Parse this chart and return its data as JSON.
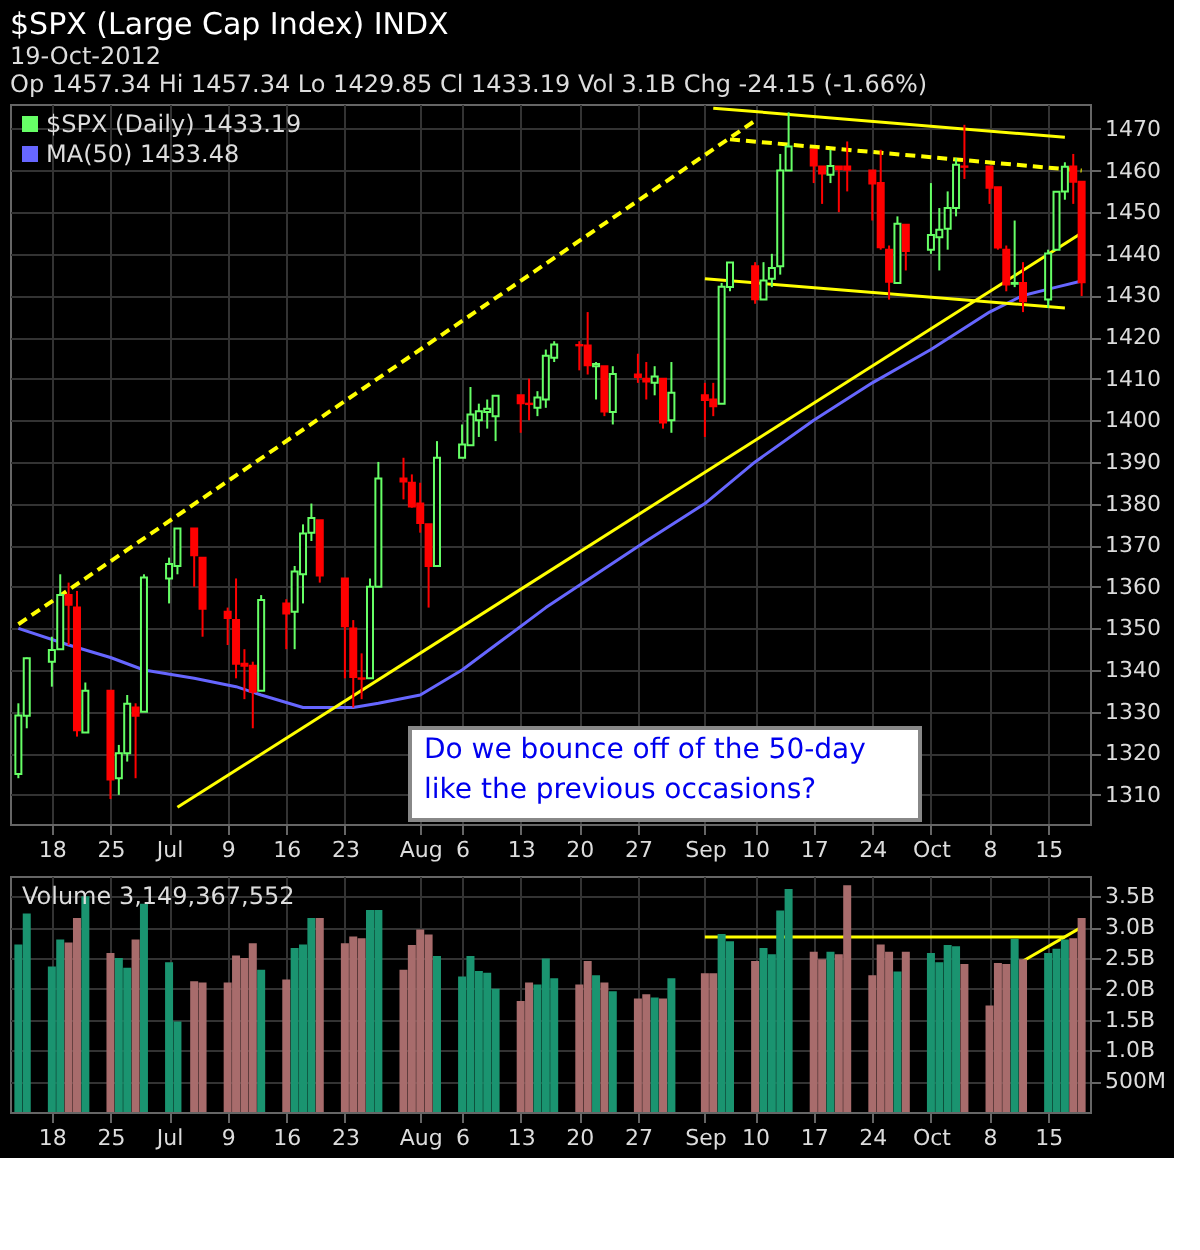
{
  "chart_data": [
    {
      "type": "candlestick",
      "title": "$SPX (Large Cap Index) INDX",
      "subtitle": "19-Oct-2012",
      "annotations": [
        "Op 1457.34  Hi 1457.34  Lo 1429.85  Cl 1433.19  Vol 3.1B  Chg -24.15 (-1.66%)",
        "Do we bounce off of the 50-day like the previous occasions?"
      ],
      "x": [
        "2012-06-14",
        "2012-06-15",
        "2012-06-18",
        "2012-06-19",
        "2012-06-20",
        "2012-06-21",
        "2012-06-22",
        "2012-06-25",
        "2012-06-26",
        "2012-06-27",
        "2012-06-28",
        "2012-06-29",
        "2012-07-02",
        "2012-07-03",
        "2012-07-05",
        "2012-07-06",
        "2012-07-09",
        "2012-07-10",
        "2012-07-11",
        "2012-07-12",
        "2012-07-13",
        "2012-07-16",
        "2012-07-17",
        "2012-07-18",
        "2012-07-19",
        "2012-07-20",
        "2012-07-23",
        "2012-07-24",
        "2012-07-25",
        "2012-07-26",
        "2012-07-27",
        "2012-07-30",
        "2012-07-31",
        "2012-08-01",
        "2012-08-02",
        "2012-08-03",
        "2012-08-06",
        "2012-08-07",
        "2012-08-08",
        "2012-08-09",
        "2012-08-10",
        "2012-08-13",
        "2012-08-14",
        "2012-08-15",
        "2012-08-16",
        "2012-08-17",
        "2012-08-20",
        "2012-08-21",
        "2012-08-22",
        "2012-08-23",
        "2012-08-24",
        "2012-08-27",
        "2012-08-28",
        "2012-08-29",
        "2012-08-30",
        "2012-08-31",
        "2012-09-04",
        "2012-09-05",
        "2012-09-06",
        "2012-09-07",
        "2012-09-10",
        "2012-09-11",
        "2012-09-12",
        "2012-09-13",
        "2012-09-14",
        "2012-09-17",
        "2012-09-18",
        "2012-09-19",
        "2012-09-20",
        "2012-09-21",
        "2012-09-24",
        "2012-09-25",
        "2012-09-26",
        "2012-09-27",
        "2012-09-28",
        "2012-10-01",
        "2012-10-02",
        "2012-10-03",
        "2012-10-04",
        "2012-10-05",
        "2012-10-08",
        "2012-10-09",
        "2012-10-10",
        "2012-10-11",
        "2012-10-12",
        "2012-10-15",
        "2012-10-16",
        "2012-10-17",
        "2012-10-18",
        "2012-10-19"
      ],
      "xticks": [
        {
          "value": "2012-06-18",
          "label": "18"
        },
        {
          "value": "2012-06-25",
          "label": "25"
        },
        {
          "value": "2012-07-02",
          "label": "Jul"
        },
        {
          "value": "2012-07-09",
          "label": "9"
        },
        {
          "value": "2012-07-16",
          "label": "16"
        },
        {
          "value": "2012-07-23",
          "label": "23"
        },
        {
          "value": "2012-08-01",
          "label": "Aug"
        },
        {
          "value": "2012-08-06",
          "label": "6"
        },
        {
          "value": "2012-08-13",
          "label": "13"
        },
        {
          "value": "2012-08-20",
          "label": "20"
        },
        {
          "value": "2012-08-27",
          "label": "27"
        },
        {
          "value": "2012-09-04",
          "label": "Sep"
        },
        {
          "value": "2012-09-10",
          "label": "10"
        },
        {
          "value": "2012-09-17",
          "label": "17"
        },
        {
          "value": "2012-09-24",
          "label": "24"
        },
        {
          "value": "2012-10-01",
          "label": "Oct"
        },
        {
          "value": "2012-10-08",
          "label": "8"
        },
        {
          "value": "2012-10-15",
          "label": "15"
        }
      ],
      "xlim": [
        "2012-06-13",
        "2012-10-20"
      ],
      "ylim": [
        1303,
        1476
      ],
      "yticks": [
        1310,
        1320,
        1330,
        1340,
        1350,
        1360,
        1370,
        1380,
        1390,
        1400,
        1410,
        1420,
        1430,
        1440,
        1450,
        1460,
        1470
      ],
      "grid": true,
      "legend": "top left",
      "series": [
        {
          "name": "$SPX (Daily) 1433.19",
          "type": "candlestick",
          "ohlc": [
            [
              1315,
              1332,
              1314,
              1329.1
            ],
            [
              1329,
              1343,
              1326,
              1342.8
            ],
            [
              1342,
              1348,
              1336,
              1344.8
            ],
            [
              1345,
              1363,
              1345,
              1358
            ],
            [
              1358,
              1361,
              1346,
              1355.7
            ],
            [
              1355,
              1359,
              1324,
              1325.5
            ],
            [
              1325,
              1337,
              1325,
              1335
            ],
            [
              1335,
              1335,
              1309,
              1313.7
            ],
            [
              1314,
              1322,
              1310,
              1320
            ],
            [
              1320,
              1334,
              1318,
              1331.9
            ],
            [
              1331,
              1332,
              1314,
              1329
            ],
            [
              1330,
              1363,
              1330,
              1362.2
            ],
            [
              1362,
              1367,
              1356,
              1365.5
            ],
            [
              1365,
              1374,
              1363,
              1374
            ],
            [
              1374,
              1374,
              1360,
              1367.6
            ],
            [
              1367,
              1367,
              1348,
              1354.7
            ],
            [
              1354,
              1355,
              1346,
              1352.5
            ],
            [
              1352,
              1362,
              1338,
              1341.5
            ],
            [
              1341,
              1345,
              1333,
              1341.5
            ],
            [
              1341,
              1342,
              1326,
              1334.8
            ],
            [
              1335,
              1358,
              1335,
              1356.8
            ],
            [
              1356,
              1357,
              1345,
              1353.6
            ],
            [
              1354,
              1365,
              1345,
              1363.7
            ],
            [
              1363,
              1375,
              1356,
              1372.8
            ],
            [
              1373,
              1380,
              1371,
              1376.5
            ],
            [
              1376,
              1376,
              1361,
              1362.7
            ],
            [
              1362,
              1362,
              1338,
              1350.5
            ],
            [
              1350,
              1352,
              1331,
              1338.3
            ],
            [
              1338,
              1344,
              1333,
              1337.9
            ],
            [
              1338,
              1362,
              1338,
              1360
            ],
            [
              1360,
              1390,
              1360,
              1386
            ],
            [
              1386,
              1391,
              1381,
              1385.3
            ],
            [
              1385,
              1387,
              1379,
              1379.3
            ],
            [
              1380,
              1385,
              1373,
              1375.3
            ],
            [
              1375,
              1375,
              1355,
              1365
            ],
            [
              1365,
              1395,
              1365,
              1391
            ],
            [
              1391,
              1399,
              1391,
              1394.2
            ],
            [
              1394,
              1408,
              1394,
              1401.4
            ],
            [
              1400,
              1404,
              1396,
              1402.2
            ],
            [
              1402,
              1405,
              1398,
              1402.8
            ],
            [
              1401,
              1406,
              1395,
              1405.9
            ],
            [
              1406,
              1406,
              1397,
              1404.1
            ],
            [
              1404,
              1410,
              1400,
              1403.9
            ],
            [
              1403,
              1407,
              1401,
              1405.5
            ],
            [
              1405,
              1417,
              1403,
              1415.5
            ],
            [
              1415,
              1419,
              1414,
              1418.2
            ],
            [
              1418,
              1419,
              1412,
              1418.1
            ],
            [
              1418,
              1426,
              1411,
              1413.2
            ],
            [
              1413,
              1414,
              1405,
              1413.5
            ],
            [
              1413,
              1413,
              1401,
              1402.1
            ],
            [
              1402,
              1413,
              1399,
              1411.1
            ],
            [
              1411,
              1416,
              1409,
              1410.4
            ],
            [
              1410,
              1414,
              1405,
              1409.3
            ],
            [
              1409,
              1413,
              1406,
              1410.5
            ],
            [
              1410,
              1410,
              1398,
              1399.5
            ],
            [
              1400,
              1414,
              1397,
              1406.6
            ],
            [
              1406,
              1409,
              1396,
              1404.9
            ],
            [
              1405,
              1409,
              1401,
              1403.4
            ],
            [
              1404,
              1433,
              1404,
              1432.1
            ],
            [
              1432,
              1438,
              1431,
              1437.9
            ],
            [
              1437,
              1438,
              1428,
              1429.1
            ],
            [
              1429,
              1438,
              1429,
              1433.6
            ],
            [
              1434,
              1440,
              1432,
              1436.6
            ],
            [
              1437,
              1464,
              1435,
              1460
            ],
            [
              1460,
              1474,
              1460,
              1465.8
            ],
            [
              1465,
              1465,
              1457,
              1461.2
            ],
            [
              1461,
              1461,
              1452,
              1459.3
            ],
            [
              1459,
              1465,
              1457,
              1461.1
            ],
            [
              1461,
              1461,
              1450,
              1460.3
            ],
            [
              1461,
              1467,
              1455,
              1460.2
            ],
            [
              1460,
              1460,
              1448,
              1456.9
            ],
            [
              1457,
              1465,
              1441,
              1441.6
            ],
            [
              1441,
              1442,
              1429,
              1433.3
            ],
            [
              1433,
              1449,
              1433,
              1447.2
            ],
            [
              1447,
              1447,
              1436,
              1440.7
            ],
            [
              1441,
              1457,
              1440,
              1444.5
            ],
            [
              1444,
              1451,
              1436,
              1445.8
            ],
            [
              1446,
              1455,
              1441,
              1451
            ],
            [
              1451,
              1463,
              1449,
              1461.4
            ],
            [
              1461,
              1471,
              1458,
              1460.9
            ],
            [
              1461,
              1461,
              1452,
              1455.9
            ],
            [
              1456,
              1456,
              1441,
              1441.5
            ],
            [
              1441,
              1442,
              1431,
              1432.6
            ],
            [
              1433,
              1448,
              1432,
              1432.8
            ],
            [
              1433,
              1438,
              1426,
              1428.6
            ],
            [
              1429,
              1441,
              1427,
              1440.1
            ],
            [
              1441,
              1455,
              1441,
              1454.9
            ],
            [
              1455,
              1462,
              1453,
              1460.9
            ],
            [
              1461,
              1464,
              1452,
              1457.3
            ],
            [
              1457.34,
              1457.34,
              1429.85,
              1433.19
            ]
          ],
          "colors": [
            "#66ff66",
            "#66ff66",
            "#66ff66",
            "#66ff66",
            "#ff0000",
            "#ff0000",
            "#66ff66",
            "#ff0000",
            "#66ff66",
            "#66ff66",
            "#ff0000",
            "#66ff66",
            "#66ff66",
            "#66ff66",
            "#ff0000",
            "#ff0000",
            "#ff0000",
            "#ff0000",
            "#ff0000",
            "#ff0000",
            "#66ff66",
            "#ff0000",
            "#66ff66",
            "#66ff66",
            "#66ff66",
            "#ff0000",
            "#ff0000",
            "#ff0000",
            "#ff0000",
            "#66ff66",
            "#66ff66",
            "#ff0000",
            "#ff0000",
            "#ff0000",
            "#ff0000",
            "#66ff66",
            "#66ff66",
            "#66ff66",
            "#66ff66",
            "#66ff66",
            "#66ff66",
            "#ff0000",
            "#ff0000",
            "#66ff66",
            "#66ff66",
            "#66ff66",
            "#ff0000",
            "#ff0000",
            "#66ff66",
            "#ff0000",
            "#66ff66",
            "#ff0000",
            "#ff0000",
            "#66ff66",
            "#ff0000",
            "#66ff66",
            "#ff0000",
            "#ff0000",
            "#66ff66",
            "#66ff66",
            "#ff0000",
            "#66ff66",
            "#66ff66",
            "#66ff66",
            "#66ff66",
            "#ff0000",
            "#ff0000",
            "#66ff66",
            "#ff0000",
            "#ff0000",
            "#ff0000",
            "#ff0000",
            "#ff0000",
            "#66ff66",
            "#ff0000",
            "#66ff66",
            "#66ff66",
            "#66ff66",
            "#66ff66",
            "#ff0000",
            "#ff0000",
            "#ff0000",
            "#ff0000",
            "#66ff66",
            "#ff0000",
            "#66ff66",
            "#66ff66",
            "#66ff66",
            "#ff0000",
            "#ff0000"
          ]
        },
        {
          "name": "MA(50) 1433.48",
          "type": "line",
          "color": "#6666ff",
          "x": [
            "2012-06-14",
            "2012-06-20",
            "2012-06-25",
            "2012-06-29",
            "2012-07-05",
            "2012-07-10",
            "2012-07-13",
            "2012-07-18",
            "2012-07-24",
            "2012-07-27",
            "2012-08-01",
            "2012-08-06",
            "2012-08-10",
            "2012-08-16",
            "2012-08-22",
            "2012-08-28",
            "2012-09-04",
            "2012-09-10",
            "2012-09-17",
            "2012-09-24",
            "2012-10-01",
            "2012-10-08",
            "2012-10-12",
            "2012-10-16",
            "2012-10-19"
          ],
          "values": [
            1350,
            1346,
            1343,
            1340,
            1338,
            1336,
            1334,
            1331,
            1331,
            1332,
            1334,
            1340,
            1346,
            1355,
            1363,
            1371,
            1380,
            1390,
            1400,
            1409,
            1417,
            1426,
            1430,
            1432,
            1433.48
          ]
        },
        {
          "type": "line",
          "color": "#ffff00",
          "line_style": "solid",
          "x": [
            "2012-07-03",
            "2012-10-19"
          ],
          "values": [
            1307,
            1445
          ]
        },
        {
          "type": "line",
          "color": "#ffff00",
          "line_style": "dashed",
          "x": [
            "2012-06-14",
            "2012-09-10"
          ],
          "values": [
            1351,
            1472
          ]
        },
        {
          "type": "line",
          "color": "#ffff00",
          "line_style": "solid",
          "x": [
            "2012-09-05",
            "2012-10-17"
          ],
          "values": [
            1475,
            1468
          ]
        },
        {
          "type": "line",
          "color": "#ffff00",
          "line_style": "dashed",
          "x": [
            "2012-09-07",
            "2012-10-19"
          ],
          "values": [
            1467.5,
            1460
          ]
        },
        {
          "type": "line",
          "color": "#ffff00",
          "line_style": "solid",
          "x": [
            "2012-09-04",
            "2012-10-17"
          ],
          "values": [
            1434,
            1427
          ]
        }
      ]
    },
    {
      "type": "bar",
      "title": "Volume 3,149,367,552",
      "x": [
        "2012-06-14",
        "2012-06-15",
        "2012-06-18",
        "2012-06-19",
        "2012-06-20",
        "2012-06-21",
        "2012-06-22",
        "2012-06-25",
        "2012-06-26",
        "2012-06-27",
        "2012-06-28",
        "2012-06-29",
        "2012-07-02",
        "2012-07-03",
        "2012-07-05",
        "2012-07-06",
        "2012-07-09",
        "2012-07-10",
        "2012-07-11",
        "2012-07-12",
        "2012-07-13",
        "2012-07-16",
        "2012-07-17",
        "2012-07-18",
        "2012-07-19",
        "2012-07-20",
        "2012-07-23",
        "2012-07-24",
        "2012-07-25",
        "2012-07-26",
        "2012-07-27",
        "2012-07-30",
        "2012-07-31",
        "2012-08-01",
        "2012-08-02",
        "2012-08-03",
        "2012-08-06",
        "2012-08-07",
        "2012-08-08",
        "2012-08-09",
        "2012-08-10",
        "2012-08-13",
        "2012-08-14",
        "2012-08-15",
        "2012-08-16",
        "2012-08-17",
        "2012-08-20",
        "2012-08-21",
        "2012-08-22",
        "2012-08-23",
        "2012-08-24",
        "2012-08-27",
        "2012-08-28",
        "2012-08-29",
        "2012-08-30",
        "2012-08-31",
        "2012-09-04",
        "2012-09-05",
        "2012-09-06",
        "2012-09-07",
        "2012-09-10",
        "2012-09-11",
        "2012-09-12",
        "2012-09-13",
        "2012-09-14",
        "2012-09-17",
        "2012-09-18",
        "2012-09-19",
        "2012-09-20",
        "2012-09-21",
        "2012-09-24",
        "2012-09-25",
        "2012-09-26",
        "2012-09-27",
        "2012-09-28",
        "2012-10-01",
        "2012-10-02",
        "2012-10-03",
        "2012-10-04",
        "2012-10-05",
        "2012-10-08",
        "2012-10-09",
        "2012-10-10",
        "2012-10-11",
        "2012-10-12",
        "2012-10-15",
        "2012-10-16",
        "2012-10-17",
        "2012-10-18",
        "2012-10-19"
      ],
      "xticks": [
        {
          "value": "2012-06-18",
          "label": "18"
        },
        {
          "value": "2012-06-25",
          "label": "25"
        },
        {
          "value": "2012-07-02",
          "label": "Jul"
        },
        {
          "value": "2012-07-09",
          "label": "9"
        },
        {
          "value": "2012-07-16",
          "label": "16"
        },
        {
          "value": "2012-07-23",
          "label": "23"
        },
        {
          "value": "2012-08-01",
          "label": "Aug"
        },
        {
          "value": "2012-08-06",
          "label": "6"
        },
        {
          "value": "2012-08-13",
          "label": "13"
        },
        {
          "value": "2012-08-20",
          "label": "20"
        },
        {
          "value": "2012-08-27",
          "label": "27"
        },
        {
          "value": "2012-09-04",
          "label": "Sep"
        },
        {
          "value": "2012-09-10",
          "label": "10"
        },
        {
          "value": "2012-09-17",
          "label": "17"
        },
        {
          "value": "2012-09-24",
          "label": "24"
        },
        {
          "value": "2012-10-01",
          "label": "Oct"
        },
        {
          "value": "2012-10-08",
          "label": "8"
        },
        {
          "value": "2012-10-15",
          "label": "15"
        }
      ],
      "xlim": [
        "2012-06-13",
        "2012-10-20"
      ],
      "ylim": [
        0,
        3830000000
      ],
      "yticks": [
        {
          "value": 500000000,
          "label": "500M"
        },
        {
          "value": 1000000000,
          "label": "1.0B"
        },
        {
          "value": 1500000000,
          "label": "1.5B"
        },
        {
          "value": 2000000000,
          "label": "2.0B"
        },
        {
          "value": 2500000000,
          "label": "2.5B"
        },
        {
          "value": 3000000000,
          "label": "3.0B"
        },
        {
          "value": 3500000000,
          "label": "3.5B"
        }
      ],
      "grid": true,
      "series": [
        {
          "type": "bar",
          "values": [
            2720000000,
            3220000000,
            2360000000,
            2800000000,
            2750000000,
            3150000000,
            3500000000,
            2580000000,
            2500000000,
            2340000000,
            2800000000,
            3380000000,
            2430000000,
            1470000000,
            2120000000,
            2100000000,
            2100000000,
            2540000000,
            2500000000,
            2740000000,
            2310000000,
            2150000000,
            2660000000,
            2720000000,
            3150000000,
            3150000000,
            2740000000,
            2850000000,
            2820000000,
            3280000000,
            3280000000,
            2310000000,
            2710000000,
            2960000000,
            2880000000,
            2530000000,
            2200000000,
            2530000000,
            2290000000,
            2260000000,
            2000000000,
            1800000000,
            2100000000,
            2070000000,
            2490000000,
            2170000000,
            2070000000,
            2450000000,
            2220000000,
            2100000000,
            1960000000,
            1840000000,
            1910000000,
            1860000000,
            1840000000,
            2170000000,
            2250000000,
            2250000000,
            2890000000,
            2770000000,
            2450000000,
            2660000000,
            2560000000,
            3270000000,
            3620000000,
            2600000000,
            2480000000,
            2600000000,
            2560000000,
            3680000000,
            2220000000,
            2720000000,
            2600000000,
            2280000000,
            2600000000,
            2580000000,
            2430000000,
            2710000000,
            2690000000,
            2400000000,
            1730000000,
            2420000000,
            2400000000,
            2810000000,
            2480000000,
            2580000000,
            2650000000,
            2800000000,
            2820000000,
            3149367552
          ],
          "colors": [
            "#1a9470",
            "#1a9470",
            "#1a9470",
            "#1a9470",
            "#a86c6c",
            "#a86c6c",
            "#1a9470",
            "#a86c6c",
            "#1a9470",
            "#1a9470",
            "#a86c6c",
            "#1a9470",
            "#1a9470",
            "#1a9470",
            "#a86c6c",
            "#a86c6c",
            "#a86c6c",
            "#a86c6c",
            "#a86c6c",
            "#a86c6c",
            "#1a9470",
            "#a86c6c",
            "#1a9470",
            "#1a9470",
            "#1a9470",
            "#a86c6c",
            "#a86c6c",
            "#a86c6c",
            "#a86c6c",
            "#1a9470",
            "#1a9470",
            "#a86c6c",
            "#a86c6c",
            "#a86c6c",
            "#a86c6c",
            "#1a9470",
            "#1a9470",
            "#1a9470",
            "#1a9470",
            "#1a9470",
            "#1a9470",
            "#a86c6c",
            "#a86c6c",
            "#1a9470",
            "#1a9470",
            "#1a9470",
            "#a86c6c",
            "#a86c6c",
            "#1a9470",
            "#a86c6c",
            "#1a9470",
            "#a86c6c",
            "#a86c6c",
            "#1a9470",
            "#a86c6c",
            "#1a9470",
            "#a86c6c",
            "#a86c6c",
            "#1a9470",
            "#1a9470",
            "#a86c6c",
            "#1a9470",
            "#1a9470",
            "#1a9470",
            "#1a9470",
            "#a86c6c",
            "#a86c6c",
            "#1a9470",
            "#a86c6c",
            "#a86c6c",
            "#a86c6c",
            "#a86c6c",
            "#a86c6c",
            "#1a9470",
            "#a86c6c",
            "#1a9470",
            "#1a9470",
            "#1a9470",
            "#1a9470",
            "#a86c6c",
            "#a86c6c",
            "#a86c6c",
            "#a86c6c",
            "#1a9470",
            "#a86c6c",
            "#1a9470",
            "#1a9470",
            "#1a9470",
            "#a86c6c",
            "#a86c6c"
          ]
        },
        {
          "type": "line",
          "color": "#ffff00",
          "line_style": "solid",
          "x": [
            "2012-09-04",
            "2012-10-17"
          ],
          "values": [
            2840000000,
            2840000000
          ]
        },
        {
          "type": "line",
          "color": "#ffff00",
          "line_style": "solid",
          "x": [
            "2012-10-12",
            "2012-10-19"
          ],
          "values": [
            2450000000,
            3000000000
          ]
        }
      ]
    }
  ]
}
